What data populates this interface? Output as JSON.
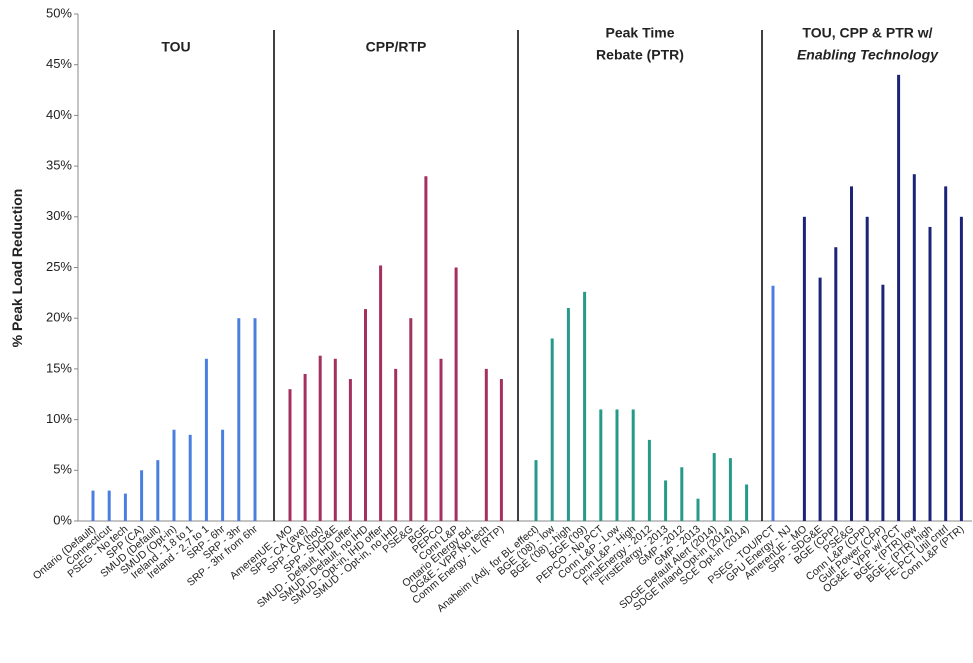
{
  "chart_data": {
    "type": "bar",
    "y_label": "% Peak Load Reduction",
    "ylim": [
      0,
      50
    ],
    "yticks": [
      {
        "value": 0,
        "label": "0%"
      },
      {
        "value": 5,
        "label": "5%"
      },
      {
        "value": 10,
        "label": "10%"
      },
      {
        "value": 15,
        "label": "15%"
      },
      {
        "value": 20,
        "label": "20%"
      },
      {
        "value": 25,
        "label": "25%"
      },
      {
        "value": 30,
        "label": "30%"
      },
      {
        "value": 35,
        "label": "35%"
      },
      {
        "value": 40,
        "label": "40%"
      },
      {
        "value": 45,
        "label": "45%"
      },
      {
        "value": 50,
        "label": "50%"
      }
    ],
    "groups": [
      {
        "name": [
          "TOU"
        ],
        "color": "#4a7fe0",
        "categories": [
          "Ontario (Default)",
          "Connecticut",
          "PSEG - No tech",
          "SPP (CA)",
          "SMUD (Default)",
          "SMUD (Opt-in)",
          "Ireland - 1.8 to 1",
          "Ireland - 2.7 to 1",
          "SRP - 6hr",
          "SRP - 3hr",
          "SRP - 3hr from 6hr"
        ],
        "values": [
          3,
          3,
          2.7,
          5,
          6,
          9,
          8.5,
          16,
          9,
          20,
          20
        ]
      },
      {
        "name": [
          "CPP/RTP"
        ],
        "color": "#a3305f",
        "categories": [
          "AmerenUE - MO",
          "SPP - CA (ave)",
          "SPP - CA (hot)",
          "SPP - SDG&E",
          "SMUD - Default, IHD offer",
          "SMUD - Default, no IHD",
          "SMUD - Opt-in, IHD offer",
          "SMUD - Opt-in, no IHD",
          "PSE&G",
          "BGE",
          "PEPCO",
          "Conn L&P",
          "Ontario Energy Bd.",
          "OG&E - VPP No tech",
          "Comm Energy - IL (RTP)"
        ],
        "values": [
          13,
          14.5,
          16.3,
          16,
          14,
          20.9,
          25.2,
          15,
          20,
          34,
          16,
          25,
          null,
          15,
          14
        ]
      },
      {
        "name": [
          "Peak Time",
          "Rebate (PTR)"
        ],
        "color": "#25998a",
        "categories": [
          "Anaheim (Adj. for BL effect)",
          "BGE ('08) - low",
          "BGE ('08) - high",
          "BGE ('09)",
          "PEPCO - No PCT",
          "Conn L&P - Low",
          "Conn L&P - High",
          "FirstEnergy - 2012",
          "FirstEnergy - 2013",
          "GMP - 2012",
          "GMP - 2013",
          "SDGE Default Alert (2014)",
          "SDGE Inland Opt-in (2014)",
          "SCE Opt-in (2014)"
        ],
        "values": [
          6,
          18,
          21,
          22.6,
          11,
          11,
          11,
          8,
          4,
          5.3,
          2.2,
          6.7,
          6.2,
          3.6
        ]
      },
      {
        "name": [
          "TOU, CPP & PTR w/",
          "Enabling Technology"
        ],
        "color": "#1c2478",
        "categories": [
          "PSEG - TOU/PCT",
          "GPU Energy - NJ",
          "AmerenUE - MO",
          "SPP - SDG&E",
          "BGE (CPP)",
          "PSE&G",
          "Conn L&P (CPP)",
          "Gulf Power (CPP)",
          "OG&E - VPP w/ PCT",
          "BGE - (PTR) low",
          "BGE - (PTR) high",
          "FE-PCT Util cntrl",
          "Conn L&P (PTR)"
        ],
        "values": [
          23.2,
          null,
          30,
          24,
          27,
          33,
          30,
          23.3,
          44,
          34.2,
          29,
          33,
          30
        ],
        "bar_colors": [
          "#4a7fe0",
          "#1c2478",
          "#1c2478",
          "#1c2478",
          "#1c2478",
          "#1c2478",
          "#1c2478",
          "#1c2478",
          "#1c2478",
          "#1c2478",
          "#1c2478",
          "#1c2478",
          "#1c2478"
        ]
      }
    ]
  }
}
